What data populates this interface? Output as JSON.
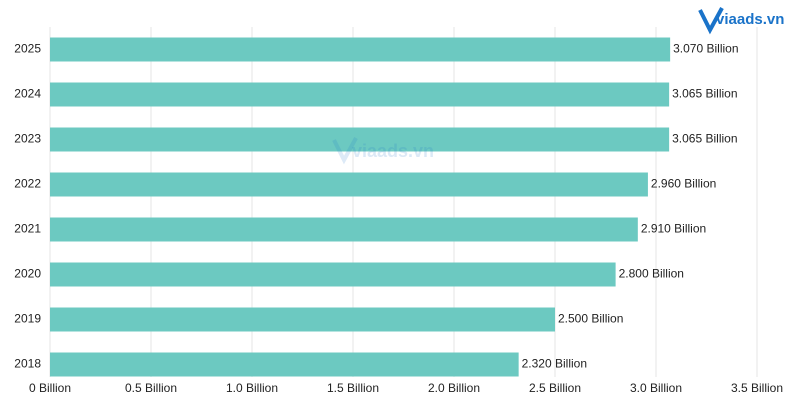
{
  "chart_data": {
    "type": "bar",
    "orientation": "horizontal",
    "categories": [
      "2025",
      "2024",
      "2023",
      "2022",
      "2021",
      "2020",
      "2019",
      "2018"
    ],
    "values": [
      3.07,
      3.065,
      3.065,
      2.96,
      2.91,
      2.8,
      2.5,
      2.32
    ],
    "value_labels": [
      "3.070 Billion",
      "3.065 Billion",
      "3.065 Billion",
      "2.960 Billion",
      "2.910 Billion",
      "2.800 Billion",
      "2.500 Billion",
      "2.320 Billion"
    ],
    "color": "#6cc9c1",
    "xlim": [
      0,
      3.5
    ],
    "xticks": [
      {
        "value": 0,
        "label": "0 Billion"
      },
      {
        "value": 0.5,
        "label": "0.5 Billion"
      },
      {
        "value": 1.0,
        "label": "1.0 Billion"
      },
      {
        "value": 1.5,
        "label": "1.5 Billion"
      },
      {
        "value": 2.0,
        "label": "2.0 Billion"
      },
      {
        "value": 2.5,
        "label": "2.5 Billion"
      },
      {
        "value": 3.0,
        "label": "3.0 Billion"
      },
      {
        "value": 3.5,
        "label": "3.5 Billion"
      }
    ],
    "grid": true,
    "logo_text": "viaads.vn",
    "watermark_text": "viaads.vn"
  }
}
